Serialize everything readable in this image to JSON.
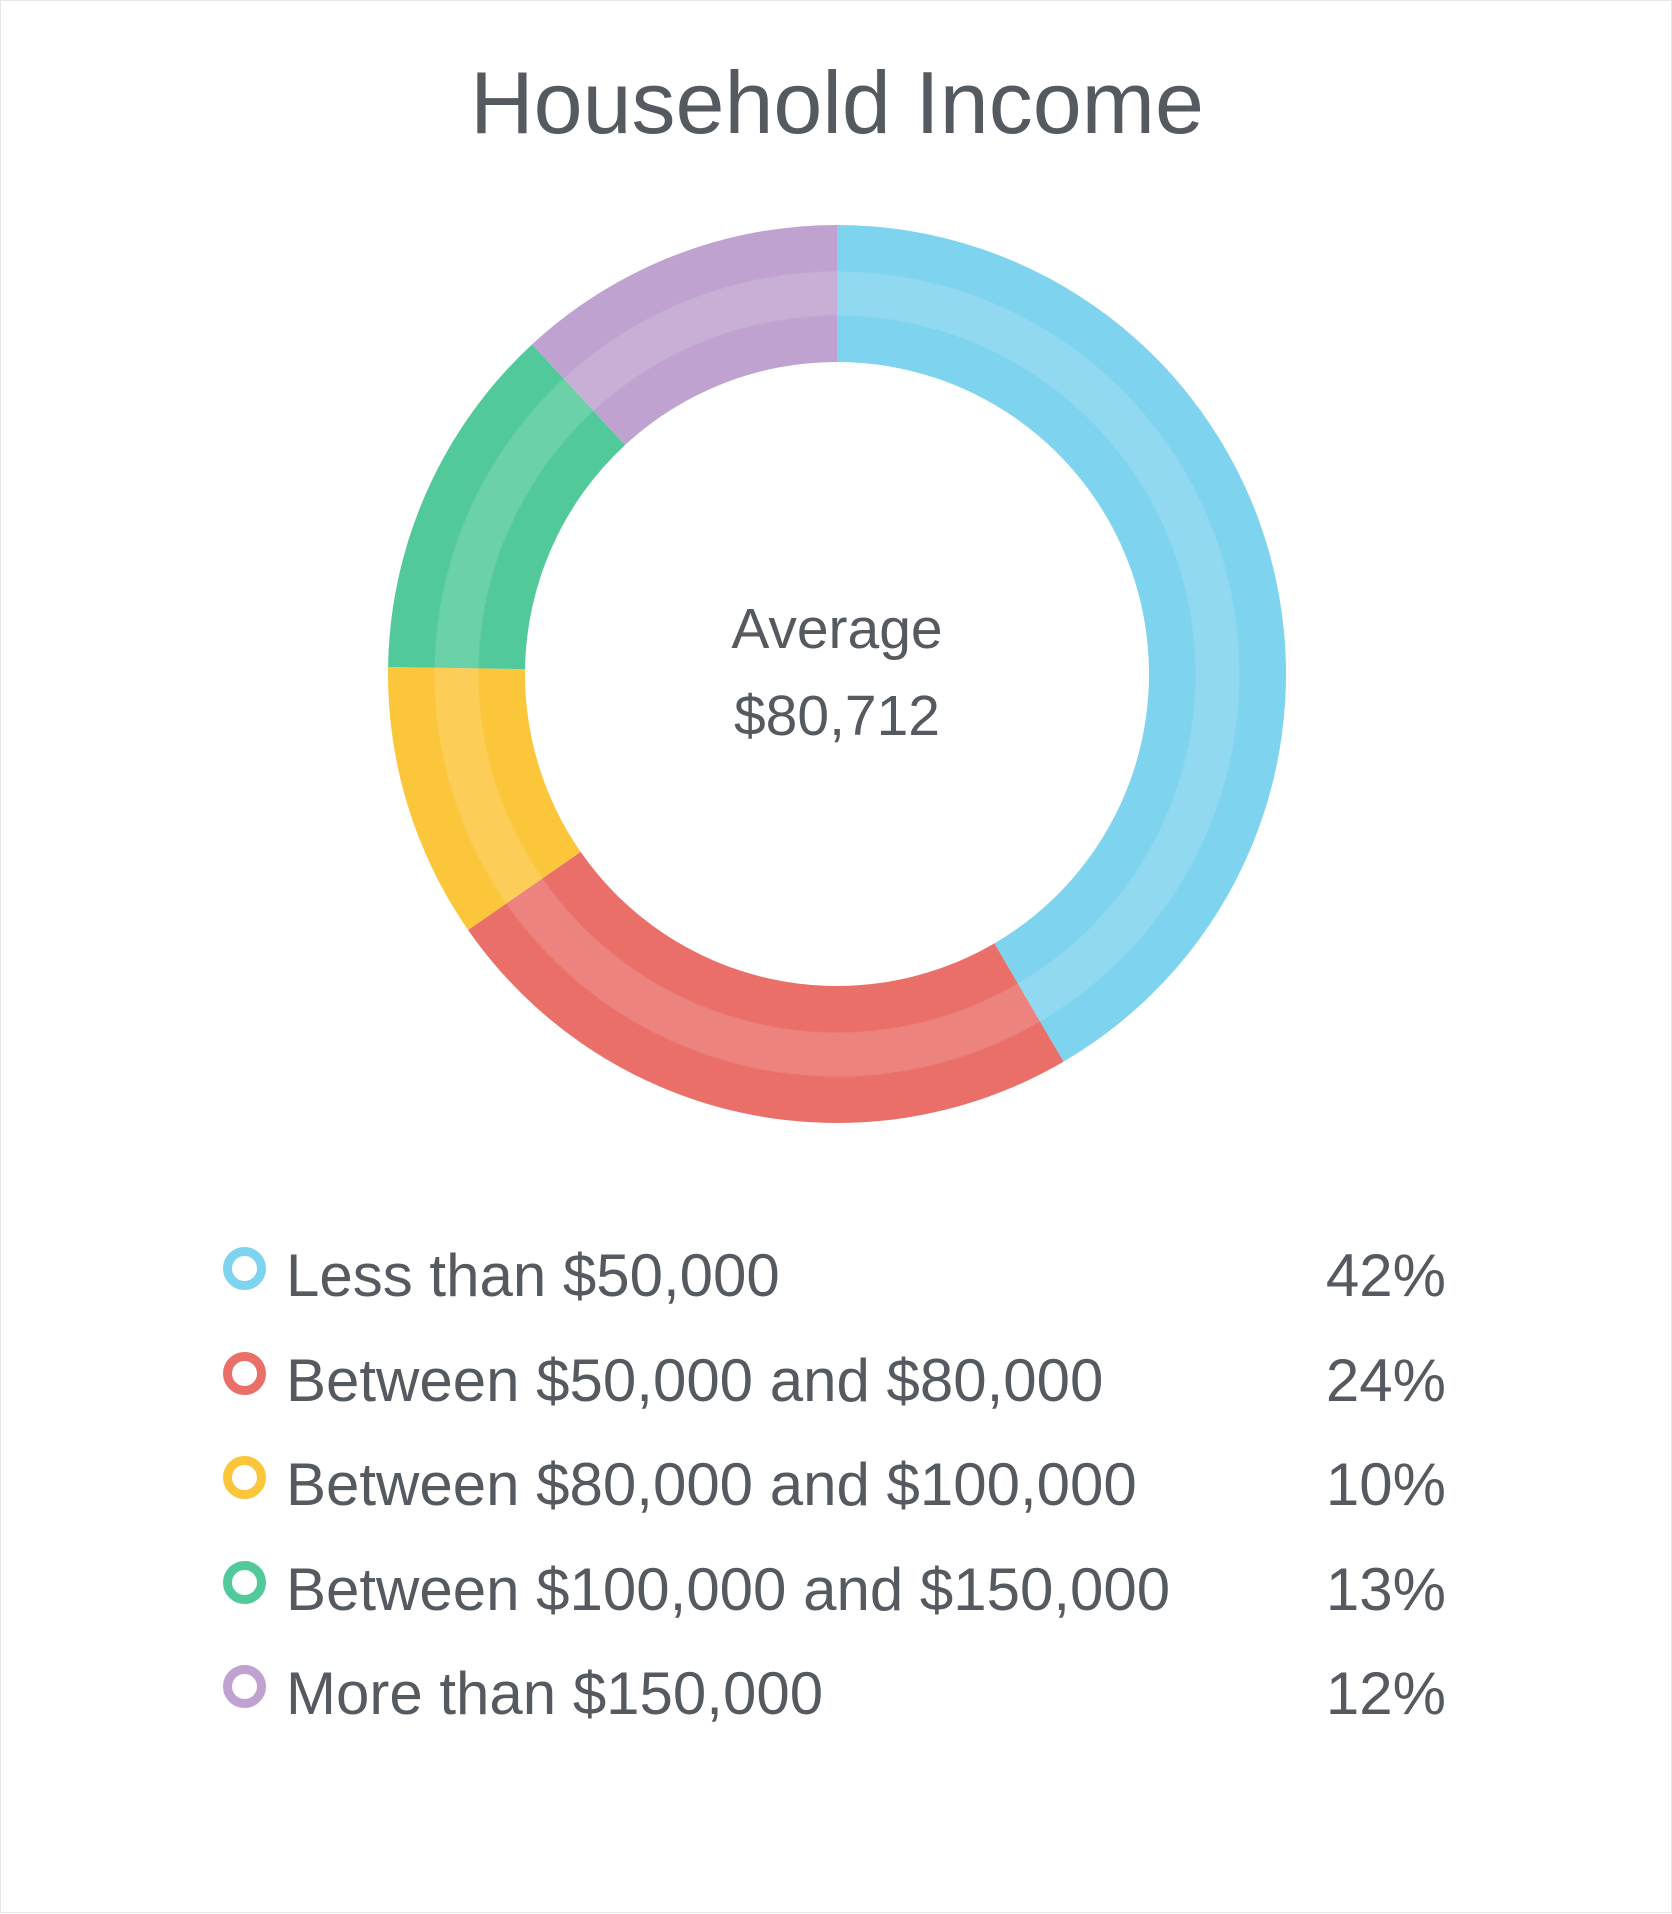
{
  "chart_data": {
    "type": "pie",
    "title": "Household Income",
    "center_caption": "Average",
    "center_value": "$80,712",
    "categories": [
      "Less than $50,000",
      "Between $50,000 and $80,000",
      "Between $80,000 and $100,000",
      "Between $100,000 and $150,000",
      "More than $150,000"
    ],
    "values": [
      42,
      24,
      10,
      13,
      12
    ],
    "value_labels": [
      "42%",
      "24%",
      "10%",
      "13%",
      "12%"
    ],
    "colors": [
      "#7ed3ee",
      "#ea6f69",
      "#fcc63b",
      "#52c99a",
      "#bfa2cf"
    ],
    "legend_position": "bottom"
  }
}
